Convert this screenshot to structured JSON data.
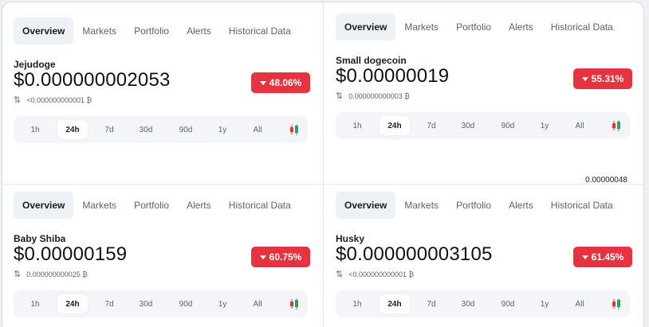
{
  "tabs": [
    "Overview",
    "Markets",
    "Portfolio",
    "Alerts",
    "Historical Data"
  ],
  "ranges": [
    "1h",
    "24h",
    "7d",
    "30d",
    "90d",
    "1y",
    "All"
  ],
  "active_range": "24h",
  "colors": {
    "badge_red": "#e5333f",
    "candle_red": "#e5333f",
    "candle_green": "#26a65b"
  },
  "icons": {
    "swap": "swap-arrows-icon",
    "candle": "candlestick-chart-icon",
    "down": "triangle-down-icon"
  },
  "cards": [
    {
      "name": "Jejudoge",
      "price": "$0.000000002053",
      "change": "48.06%",
      "volume": "<0.000000000001 ₿"
    },
    {
      "name": "Small dogecoin",
      "price": "$0.00000019",
      "change": "55.31%",
      "volume": "0.000000000003 ₿"
    },
    {
      "name": "Baby Shiba",
      "price": "$0.00000159",
      "change": "60.75%",
      "volume": "0.000000000025 ₿"
    },
    {
      "name": "Husky",
      "price": "$0.000000003105",
      "change": "61.45%",
      "volume": "<0.000000000001 ₿"
    }
  ],
  "chart_value": "0.00000048"
}
